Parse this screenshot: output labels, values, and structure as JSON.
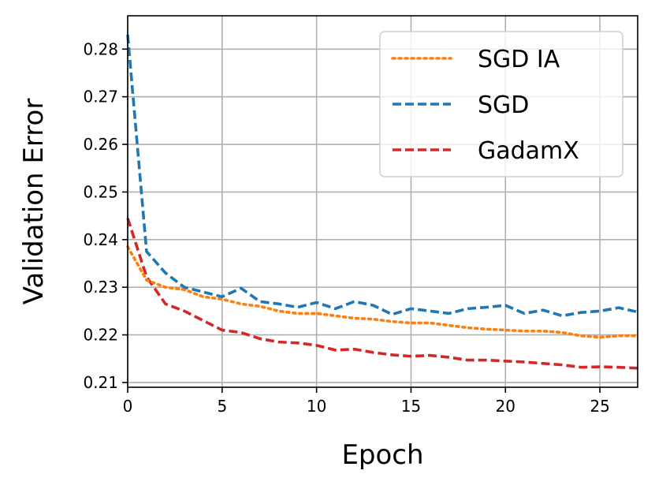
{
  "chart_data": {
    "type": "line",
    "title": "",
    "xlabel": "Epoch",
    "ylabel": "Validation Error",
    "xlim": [
      0,
      27
    ],
    "ylim": [
      0.209,
      0.287
    ],
    "xticks": [
      0,
      5,
      10,
      15,
      20,
      25
    ],
    "yticks": [
      0.21,
      0.22,
      0.23,
      0.24,
      0.25,
      0.26,
      0.27,
      0.28
    ],
    "xtick_labels": [
      "0",
      "5",
      "10",
      "15",
      "20",
      "25"
    ],
    "ytick_labels": [
      "0.21",
      "0.22",
      "0.23",
      "0.24",
      "0.25",
      "0.26",
      "0.27",
      "0.28"
    ],
    "grid": true,
    "legend_position": "top-right",
    "series": [
      {
        "name": "SGD IA",
        "color": "#ff7f0e",
        "dash": "dotted",
        "x": [
          0,
          1,
          2,
          3,
          4,
          5,
          6,
          7,
          8,
          9,
          10,
          11,
          12,
          13,
          14,
          15,
          16,
          17,
          18,
          19,
          20,
          21,
          22,
          23,
          24,
          25,
          26,
          27
        ],
        "y": [
          0.2385,
          0.2315,
          0.23,
          0.2295,
          0.228,
          0.2275,
          0.2265,
          0.226,
          0.225,
          0.2245,
          0.2245,
          0.224,
          0.2235,
          0.2233,
          0.2228,
          0.2225,
          0.2225,
          0.222,
          0.2215,
          0.2212,
          0.221,
          0.2208,
          0.2208,
          0.2205,
          0.2198,
          0.2195,
          0.2198,
          0.2198
        ]
      },
      {
        "name": "SGD",
        "color": "#1f77b4",
        "dash": "dashed",
        "x": [
          0,
          1,
          2,
          3,
          4,
          5,
          6,
          7,
          8,
          9,
          10,
          11,
          12,
          13,
          14,
          15,
          16,
          17,
          18,
          19,
          20,
          21,
          22,
          23,
          24,
          25,
          26,
          27
        ],
        "y": [
          0.283,
          0.2375,
          0.233,
          0.23,
          0.229,
          0.228,
          0.2298,
          0.227,
          0.2265,
          0.2258,
          0.2268,
          0.2255,
          0.227,
          0.2262,
          0.2243,
          0.2255,
          0.225,
          0.2245,
          0.2255,
          0.2258,
          0.2262,
          0.2245,
          0.2252,
          0.224,
          0.2247,
          0.225,
          0.2257,
          0.2248
        ]
      },
      {
        "name": "GadamX",
        "color": "#d62728",
        "dash": "dashed",
        "x": [
          0,
          1,
          2,
          3,
          4,
          5,
          6,
          7,
          8,
          9,
          10,
          11,
          12,
          13,
          14,
          15,
          16,
          17,
          18,
          19,
          20,
          21,
          22,
          23,
          24,
          25,
          26,
          27
        ],
        "y": [
          0.2445,
          0.2322,
          0.2265,
          0.225,
          0.223,
          0.221,
          0.2205,
          0.2192,
          0.2185,
          0.2183,
          0.2178,
          0.2168,
          0.217,
          0.2163,
          0.2158,
          0.2155,
          0.2157,
          0.2153,
          0.2147,
          0.2147,
          0.2145,
          0.2143,
          0.214,
          0.2137,
          0.2132,
          0.2133,
          0.2132,
          0.213
        ]
      }
    ]
  }
}
